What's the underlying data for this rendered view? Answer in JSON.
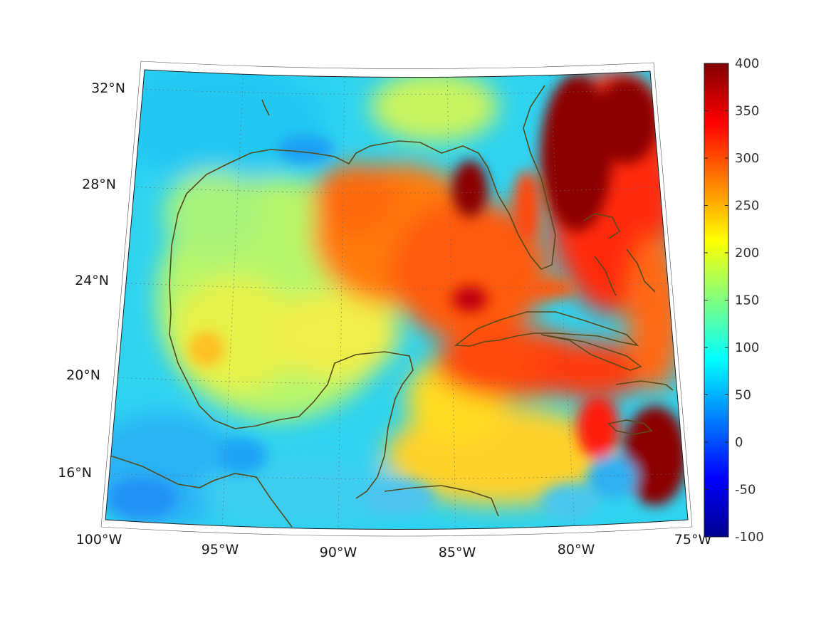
{
  "map": {
    "region": "Gulf of Mexico and Caribbean",
    "projection": "conic",
    "grid": true,
    "coastline_color": "#5a4a1a",
    "lon_ticks": [
      "100°W",
      "95°W",
      "90°W",
      "85°W",
      "80°W",
      "75°W"
    ],
    "lat_ticks": [
      "32°N",
      "28°N",
      "24°N",
      "20°N",
      "16°N"
    ]
  },
  "colorbar": {
    "colormap": "jet",
    "range": [
      -100,
      400
    ],
    "tick_labels": [
      "400",
      "350",
      "300",
      "250",
      "200",
      "150",
      "100",
      "50",
      "0",
      "-50",
      "-100"
    ]
  }
}
